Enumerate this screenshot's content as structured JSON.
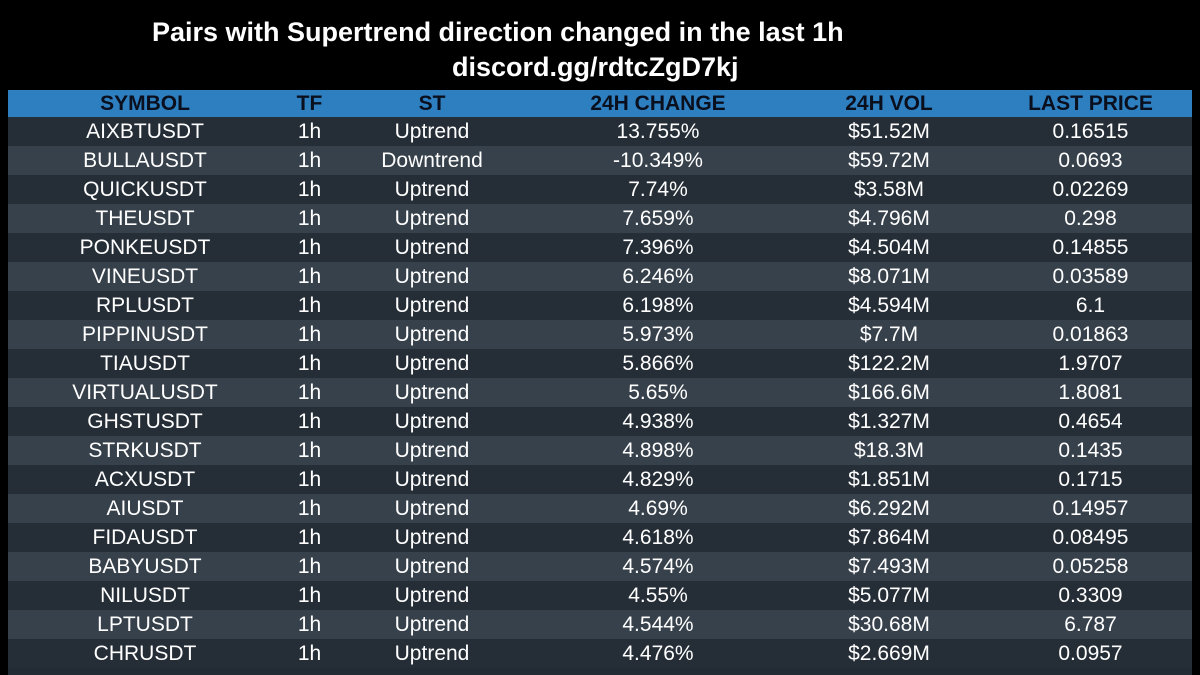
{
  "header": {
    "title": "Pairs with Supertrend direction changed in the last 1h",
    "subtitle": "discord.gg/rdtcZgD7kj"
  },
  "colors": {
    "background": "#000000",
    "header_row": "#2e7fc0",
    "header_text": "#0a0f1e",
    "row_dark": "#252e37",
    "row_light": "#37414b",
    "text": "#ffffff"
  },
  "table": {
    "columns": [
      "SYMBOL",
      "TF",
      "ST",
      "24H CHANGE",
      "24H VOL",
      "LAST PRICE"
    ],
    "rows": [
      {
        "symbol": "AIXBTUSDT",
        "tf": "1h",
        "st": "Uptrend",
        "change": "13.755%",
        "vol": "$51.52M",
        "price": "0.16515"
      },
      {
        "symbol": "BULLAUSDT",
        "tf": "1h",
        "st": "Downtrend",
        "change": "-10.349%",
        "vol": "$59.72M",
        "price": "0.0693"
      },
      {
        "symbol": "QUICKUSDT",
        "tf": "1h",
        "st": "Uptrend",
        "change": "7.74%",
        "vol": "$3.58M",
        "price": "0.02269"
      },
      {
        "symbol": "THEUSDT",
        "tf": "1h",
        "st": "Uptrend",
        "change": "7.659%",
        "vol": "$4.796M",
        "price": "0.298"
      },
      {
        "symbol": "PONKEUSDT",
        "tf": "1h",
        "st": "Uptrend",
        "change": "7.396%",
        "vol": "$4.504M",
        "price": "0.14855"
      },
      {
        "symbol": "VINEUSDT",
        "tf": "1h",
        "st": "Uptrend",
        "change": "6.246%",
        "vol": "$8.071M",
        "price": "0.03589"
      },
      {
        "symbol": "RPLUSDT",
        "tf": "1h",
        "st": "Uptrend",
        "change": "6.198%",
        "vol": "$4.594M",
        "price": "6.1"
      },
      {
        "symbol": "PIPPINUSDT",
        "tf": "1h",
        "st": "Uptrend",
        "change": "5.973%",
        "vol": "$7.7M",
        "price": "0.01863"
      },
      {
        "symbol": "TIAUSDT",
        "tf": "1h",
        "st": "Uptrend",
        "change": "5.866%",
        "vol": "$122.2M",
        "price": "1.9707"
      },
      {
        "symbol": "VIRTUALUSDT",
        "tf": "1h",
        "st": "Uptrend",
        "change": "5.65%",
        "vol": "$166.6M",
        "price": "1.8081"
      },
      {
        "symbol": "GHSTUSDT",
        "tf": "1h",
        "st": "Uptrend",
        "change": "4.938%",
        "vol": "$1.327M",
        "price": "0.4654"
      },
      {
        "symbol": "STRKUSDT",
        "tf": "1h",
        "st": "Uptrend",
        "change": "4.898%",
        "vol": "$18.3M",
        "price": "0.1435"
      },
      {
        "symbol": "ACXUSDT",
        "tf": "1h",
        "st": "Uptrend",
        "change": "4.829%",
        "vol": "$1.851M",
        "price": "0.1715"
      },
      {
        "symbol": "AIUSDT",
        "tf": "1h",
        "st": "Uptrend",
        "change": "4.69%",
        "vol": "$6.292M",
        "price": "0.14957"
      },
      {
        "symbol": "FIDAUSDT",
        "tf": "1h",
        "st": "Uptrend",
        "change": "4.618%",
        "vol": "$7.864M",
        "price": "0.08495"
      },
      {
        "symbol": "BABYUSDT",
        "tf": "1h",
        "st": "Uptrend",
        "change": "4.574%",
        "vol": "$7.493M",
        "price": "0.05258"
      },
      {
        "symbol": "NILUSDT",
        "tf": "1h",
        "st": "Uptrend",
        "change": "4.55%",
        "vol": "$5.077M",
        "price": "0.3309"
      },
      {
        "symbol": "LPTUSDT",
        "tf": "1h",
        "st": "Uptrend",
        "change": "4.544%",
        "vol": "$30.68M",
        "price": "6.787"
      },
      {
        "symbol": "CHRUSDT",
        "tf": "1h",
        "st": "Uptrend",
        "change": "4.476%",
        "vol": "$2.669M",
        "price": "0.0957"
      }
    ]
  }
}
